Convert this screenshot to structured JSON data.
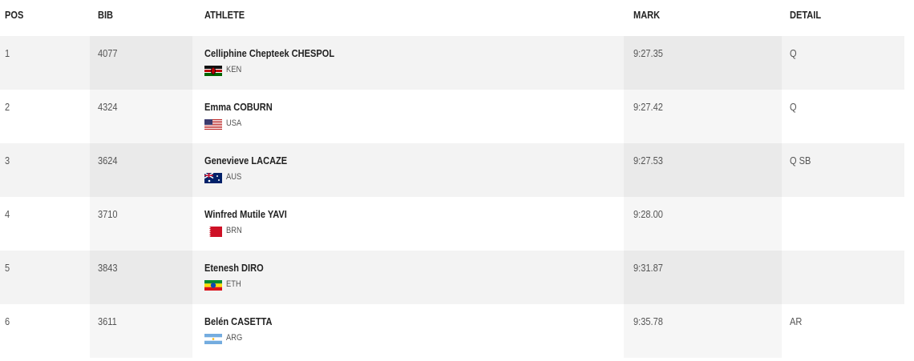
{
  "header": {
    "pos": "POS",
    "bib": "BIB",
    "athlete": "ATHLETE",
    "mark": "MARK",
    "detail": "DETAIL"
  },
  "rows": [
    {
      "pos": "1",
      "bib": "4077",
      "athlete": "Celliphine Chepteek CHESPOL",
      "country": "KEN",
      "mark": "9:27.35",
      "detail": "Q"
    },
    {
      "pos": "2",
      "bib": "4324",
      "athlete": "Emma COBURN",
      "country": "USA",
      "mark": "9:27.42",
      "detail": "Q"
    },
    {
      "pos": "3",
      "bib": "3624",
      "athlete": "Genevieve LACAZE",
      "country": "AUS",
      "mark": "9:27.53",
      "detail": "Q SB"
    },
    {
      "pos": "4",
      "bib": "3710",
      "athlete": "Winfred Mutile YAVI",
      "country": "BRN",
      "mark": "9:28.00"
    },
    {
      "pos": "5",
      "bib": "3843",
      "athlete": "Etenesh DIRO",
      "country": "ETH",
      "mark": "9:31.87"
    },
    {
      "pos": "6",
      "bib": "3611",
      "athlete": "Belén CASETTA",
      "country": "ARG",
      "mark": "9:35.78",
      "detail": "AR"
    }
  ]
}
